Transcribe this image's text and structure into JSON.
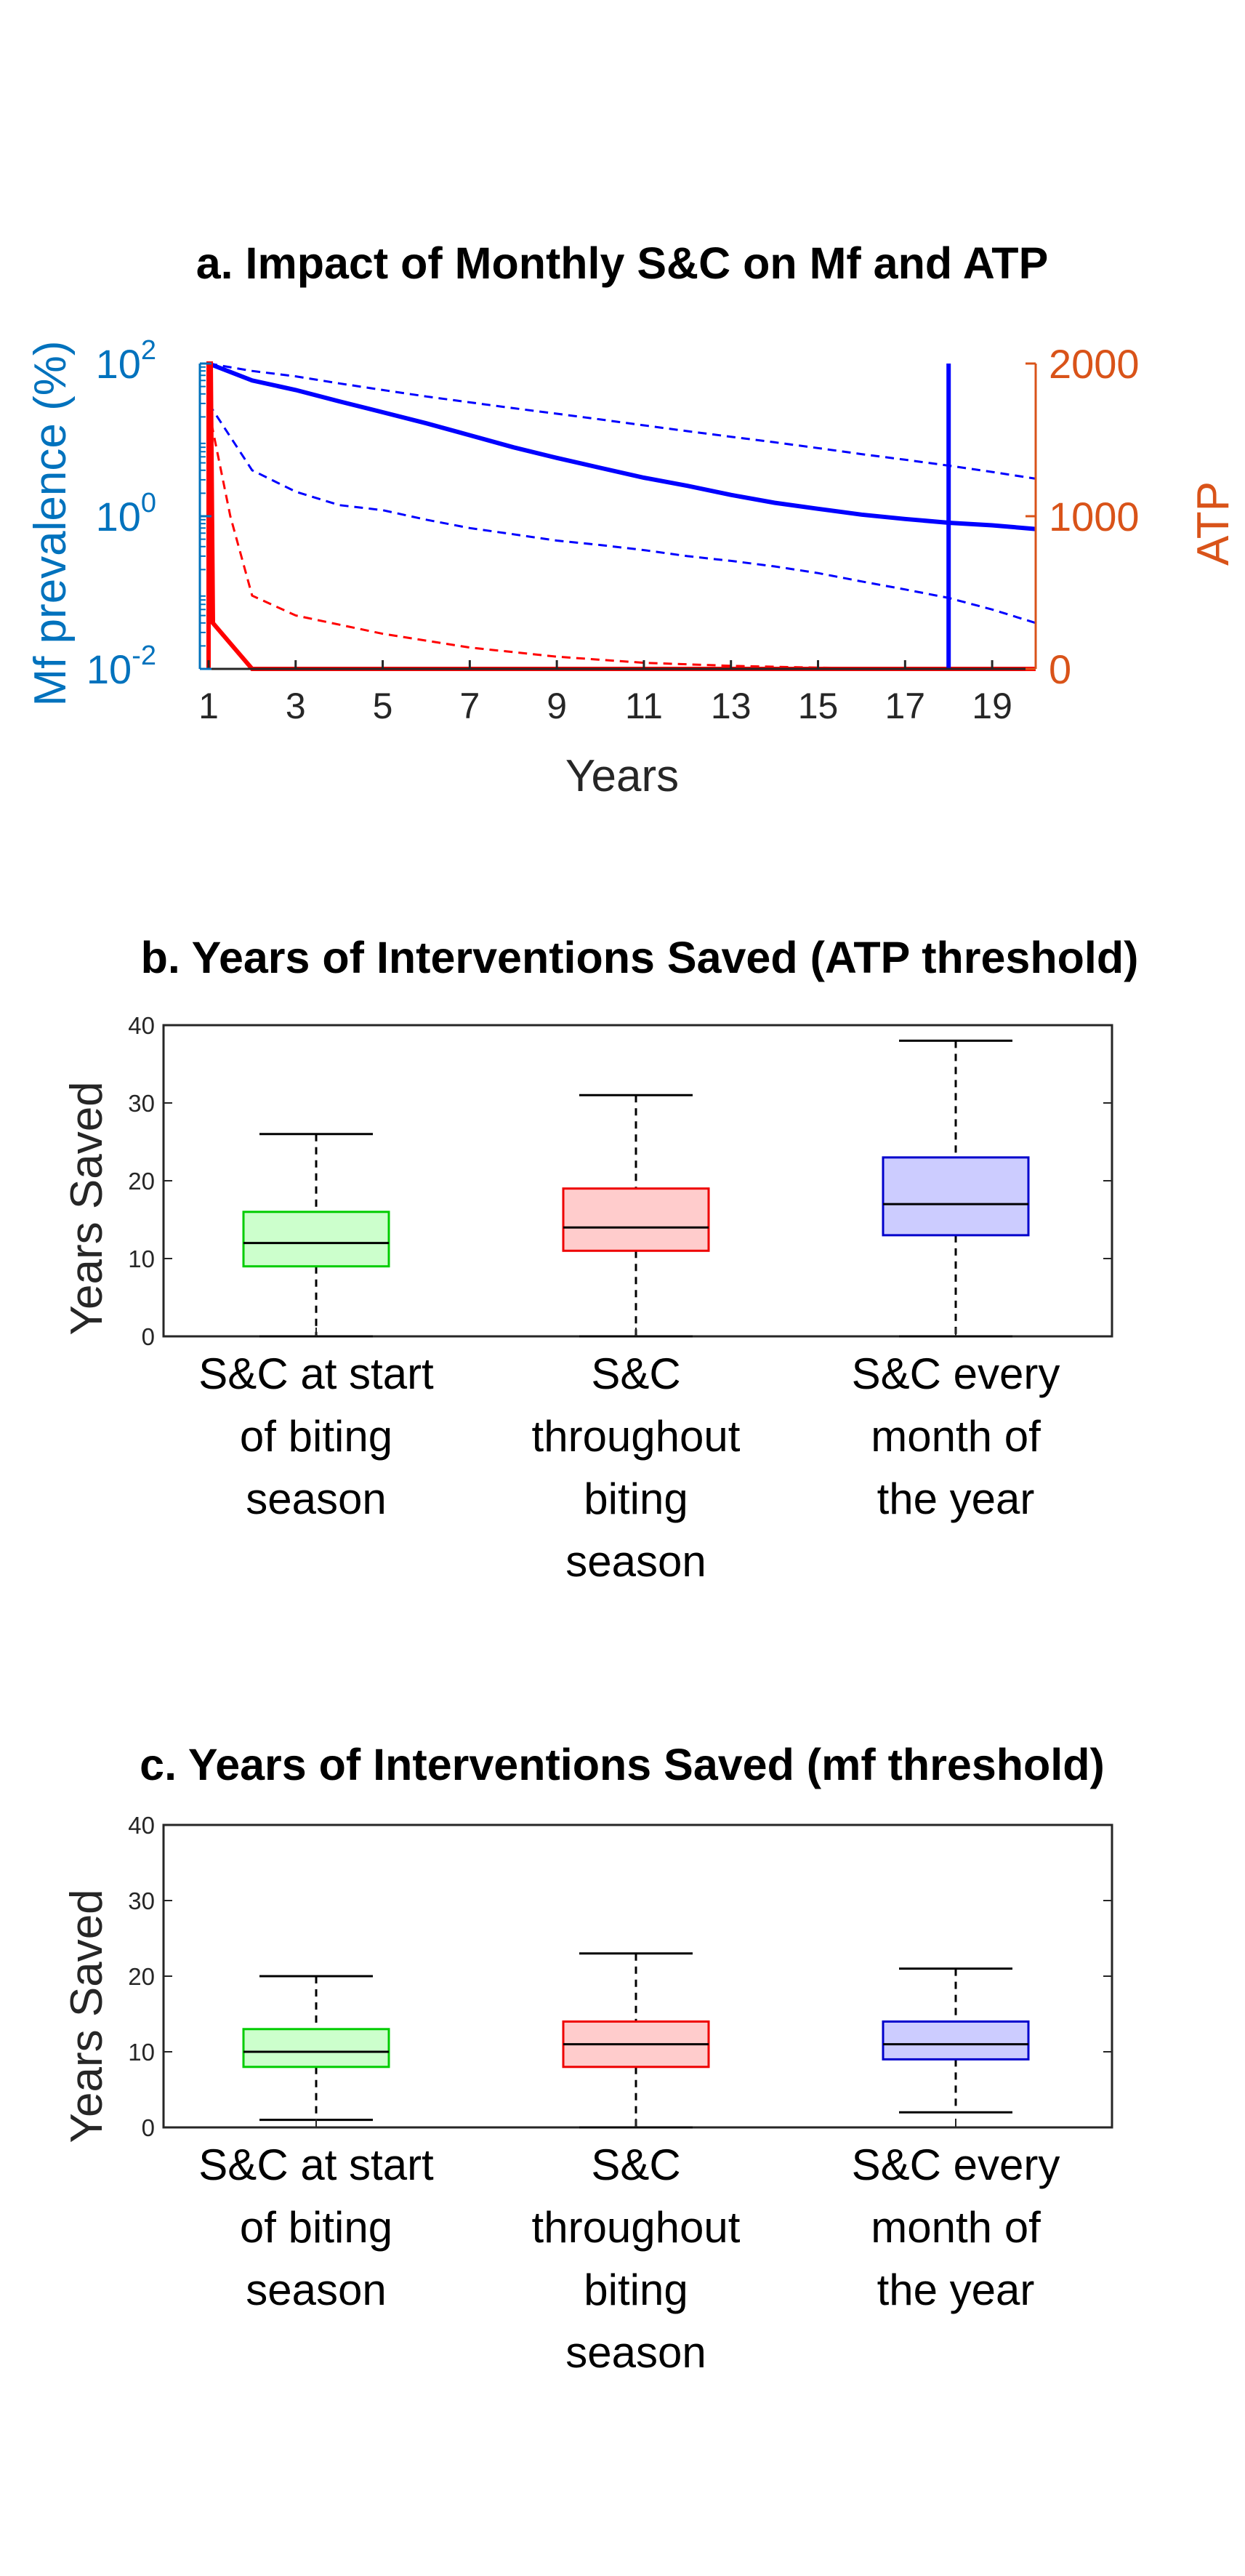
{
  "chart_data": [
    {
      "type": "line",
      "title": "a. Impact of Monthly S&C on Mf and ATP",
      "xlabel": "Years",
      "ylabel_left": "Mf prevalence (%)",
      "ylabel_right": "ATP",
      "x_ticks": [
        1,
        3,
        5,
        7,
        9,
        11,
        13,
        15,
        17,
        19
      ],
      "x_range": [
        0.8,
        20
      ],
      "y_left_scale": "log",
      "y_left_range": [
        0.01,
        100
      ],
      "y_left_ticks": [
        {
          "base": "10",
          "exp": "2",
          "value": 100
        },
        {
          "base": "10",
          "exp": "0",
          "value": 1
        },
        {
          "base": "10",
          "exp": "-2",
          "value": 0.01
        }
      ],
      "y_right_range": [
        0,
        2000
      ],
      "y_right_ticks": [
        "2000",
        "1000",
        "0"
      ],
      "colors": {
        "mf": "#0000FF",
        "atp": "#FF0000",
        "left_axis": "#0072BD",
        "right_axis": "#D95319"
      },
      "series": [
        {
          "axis": "left",
          "style": "solid",
          "color": "#0000FF",
          "x": [
            1,
            2,
            3,
            4,
            5,
            6,
            7,
            8,
            9,
            10,
            11,
            12,
            13,
            14,
            15,
            16,
            17,
            18,
            19,
            20
          ],
          "y": [
            100,
            60,
            45,
            32,
            23,
            16.5,
            11.5,
            8,
            5.8,
            4.3,
            3.2,
            2.5,
            1.9,
            1.5,
            1.25,
            1.05,
            0.92,
            0.82,
            0.76,
            0.68
          ]
        },
        {
          "axis": "left",
          "style": "dashed",
          "color": "#0000FF",
          "x": [
            1,
            2,
            3,
            4,
            5,
            6,
            7,
            8,
            9,
            10,
            11,
            12,
            13,
            14,
            15,
            16,
            17,
            18,
            19,
            20
          ],
          "y": [
            100,
            80,
            68,
            55,
            45,
            37,
            31,
            26,
            22,
            18.5,
            15.5,
            13,
            11,
            9.3,
            7.8,
            6.5,
            5.5,
            4.6,
            3.8,
            3.1
          ]
        },
        {
          "axis": "left",
          "style": "dashed",
          "color": "#0000FF",
          "x": [
            1,
            2,
            3,
            4,
            5,
            6,
            7,
            8,
            9,
            10,
            11,
            12,
            13,
            14,
            15,
            16,
            17,
            18,
            19,
            20
          ],
          "y": [
            30,
            4,
            2.1,
            1.4,
            1.2,
            0.9,
            0.7,
            0.58,
            0.48,
            0.42,
            0.36,
            0.3,
            0.26,
            0.22,
            0.18,
            0.14,
            0.11,
            0.085,
            0.06,
            0.04
          ]
        },
        {
          "axis": "right",
          "style": "solid",
          "color": "#FF0000",
          "x": [
            1,
            1,
            1.05,
            1.1,
            2,
            20
          ],
          "y": [
            0,
            2000,
            2000,
            300,
            0,
            0
          ]
        },
        {
          "axis": "right",
          "style": "dashed",
          "color": "#FF0000",
          "x": [
            1,
            1.5,
            2,
            3,
            5,
            7,
            9,
            11,
            13,
            15,
            17,
            20
          ],
          "y": [
            1700,
            1000,
            480,
            350,
            230,
            140,
            80,
            40,
            20,
            8,
            2,
            0
          ]
        },
        {
          "axis": "left",
          "style": "solid",
          "color": "#0000FF",
          "x": [
            18,
            18
          ],
          "y": [
            0.01,
            100
          ]
        }
      ]
    },
    {
      "type": "box",
      "title": "b. Years of Interventions Saved (ATP threshold)",
      "ylabel": "Years Saved",
      "ylim": [
        0,
        40
      ],
      "y_ticks": [
        "0",
        "10",
        "20",
        "30",
        "40"
      ],
      "categories": [
        [
          "S&C at start",
          "of biting",
          "season"
        ],
        [
          "S&C",
          "throughout",
          "biting",
          "season"
        ],
        [
          "S&C every",
          "month of",
          "the year"
        ]
      ],
      "boxes": [
        {
          "min": 0,
          "q1": 9,
          "median": 12,
          "q3": 16,
          "max": 26,
          "edge": "#00CC00",
          "fill": "#CCFFCC"
        },
        {
          "min": 0,
          "q1": 11,
          "median": 14,
          "q3": 19,
          "max": 31,
          "edge": "#EE0000",
          "fill": "#FFCCCC"
        },
        {
          "min": 0,
          "q1": 13,
          "median": 17,
          "q3": 23,
          "max": 38,
          "edge": "#0000CC",
          "fill": "#CCCCFF"
        }
      ]
    },
    {
      "type": "box",
      "title": "c. Years of Interventions Saved (mf threshold)",
      "ylabel": "Years Saved",
      "ylim": [
        0,
        40
      ],
      "y_ticks": [
        "0",
        "10",
        "20",
        "30",
        "40"
      ],
      "categories": [
        [
          "S&C at start",
          "of biting",
          "season"
        ],
        [
          "S&C",
          "throughout",
          "biting",
          "season"
        ],
        [
          "S&C every",
          "month of",
          "the year"
        ]
      ],
      "boxes": [
        {
          "min": 1,
          "q1": 8,
          "median": 10,
          "q3": 13,
          "max": 20,
          "edge": "#00CC00",
          "fill": "#CCFFCC"
        },
        {
          "min": 0,
          "q1": 8,
          "median": 11,
          "q3": 14,
          "max": 23,
          "edge": "#EE0000",
          "fill": "#FFCCCC"
        },
        {
          "min": 2,
          "q1": 9,
          "median": 11,
          "q3": 14,
          "max": 21,
          "edge": "#0000CC",
          "fill": "#CCCCFF"
        }
      ]
    }
  ]
}
